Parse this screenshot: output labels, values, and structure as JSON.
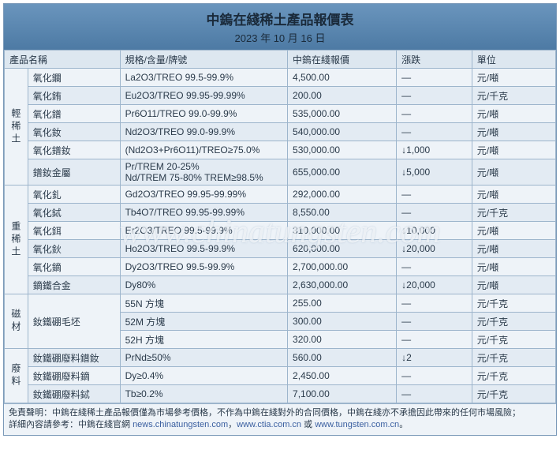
{
  "header": {
    "title": "中鎢在綫稀土產品報價表",
    "date": "2023 年 10 月 16 日"
  },
  "columns": {
    "name": "產品名稱",
    "spec": "規格/含量/牌號",
    "price": "中鎢在綫報價",
    "change": "漲跌",
    "unit": "單位"
  },
  "groups": [
    {
      "label": "輕稀土",
      "rows": [
        {
          "name": "氧化鑭",
          "spec": "La2O3/TREO 99.5-99.9%",
          "price": "4,500.00",
          "change": "—",
          "unit": "元/噸"
        },
        {
          "name": "氧化銪",
          "spec": "Eu2O3/TREO 99.95-99.99%",
          "price": "200.00",
          "change": "—",
          "unit": "元/千克"
        },
        {
          "name": "氧化鐠",
          "spec": "Pr6O11/TREO 99.0-99.9%",
          "price": "535,000.00",
          "change": "—",
          "unit": "元/噸"
        },
        {
          "name": "氧化釹",
          "spec": "Nd2O3/TREO 99.0-99.9%",
          "price": "540,000.00",
          "change": "—",
          "unit": "元/噸"
        },
        {
          "name": "氧化鐠釹",
          "spec": "(Nd2O3+Pr6O11)/TREO≥75.0%",
          "price": "530,000.00",
          "change": "↓1,000",
          "unit": "元/噸"
        },
        {
          "name": "鐠釹金屬",
          "spec": "Pr/TREM 20-25%\nNd/TREM 75-80% TREM≥98.5%",
          "price": "655,000.00",
          "change": "↓5,000",
          "unit": "元/噸"
        }
      ]
    },
    {
      "label": "重稀土",
      "rows": [
        {
          "name": "氧化釓",
          "spec": "Gd2O3/TREO 99.95-99.99%",
          "price": "292,000.00",
          "change": "—",
          "unit": "元/噸"
        },
        {
          "name": "氧化鋱",
          "spec": "Tb4O7/TREO 99.95-99.99%",
          "price": "8,550.00",
          "change": "—",
          "unit": "元/千克"
        },
        {
          "name": "氧化鉺",
          "spec": "Er2O3/TREO 99.5-99.9%",
          "price": "310,000.00",
          "change": "↓10,000",
          "unit": "元/噸"
        },
        {
          "name": "氧化鈥",
          "spec": "Ho2O3/TREO 99.5-99.9%",
          "price": "620,000.00",
          "change": "↓20,000",
          "unit": "元/噸"
        },
        {
          "name": "氧化鏑",
          "spec": "Dy2O3/TREO 99.5-99.9%",
          "price": "2,700,000.00",
          "change": "—",
          "unit": "元/噸"
        },
        {
          "name": "鏑鐵合金",
          "spec": "Dy80%",
          "price": "2,630,000.00",
          "change": "↓20,000",
          "unit": "元/噸"
        }
      ]
    },
    {
      "label": "磁材",
      "rows": [
        {
          "name": "釹鐵硼毛坯",
          "spec": "55N 方塊",
          "price": "255.00",
          "change": "—",
          "unit": "元/千克"
        },
        {
          "name": "",
          "spec": "52M 方塊",
          "price": "300.00",
          "change": "—",
          "unit": "元/千克"
        },
        {
          "name": "",
          "spec": "52H 方塊",
          "price": "320.00",
          "change": "—",
          "unit": "元/千克"
        }
      ]
    },
    {
      "label": "廢料",
      "rows": [
        {
          "name": "釹鐵硼廢料鐠釹",
          "spec": "PrNd≥50%",
          "price": "560.00",
          "change": "↓2",
          "unit": "元/千克"
        },
        {
          "name": "釹鐵硼廢料鏑",
          "spec": "Dy≥0.4%",
          "price": "2,450.00",
          "change": "—",
          "unit": "元/千克"
        },
        {
          "name": "釹鐵硼廢料鋱",
          "spec": "Tb≥0.2%",
          "price": "7,100.00",
          "change": "—",
          "unit": "元/千克"
        }
      ]
    }
  ],
  "footer": {
    "disclaimer_label": "免責聲明：",
    "disclaimer_text": "中鎢在綫稀土產品報價僅為市場參考價格，不作為中鎢在綫對外的合同價格，中鎢在綫亦不承擔因此帶來的任何市場風險；",
    "detail_label": "詳細內容請參考：",
    "detail_text": "中鎢在綫官網 ",
    "link1": "news.chinatungsten.com",
    "sep1": "，",
    "link2": "www.ctia.com.cn",
    "sep2": " 或 ",
    "link3": "www.tungsten.com.cn",
    "tail": "。"
  },
  "watermark": "www.chinatungsten.com",
  "colors": {
    "header_bg": "#5b87b0",
    "border": "#9db5cc",
    "row_odd": "#eef3f8",
    "row_even": "#e3ebf3",
    "text": "#2a3a4a"
  }
}
